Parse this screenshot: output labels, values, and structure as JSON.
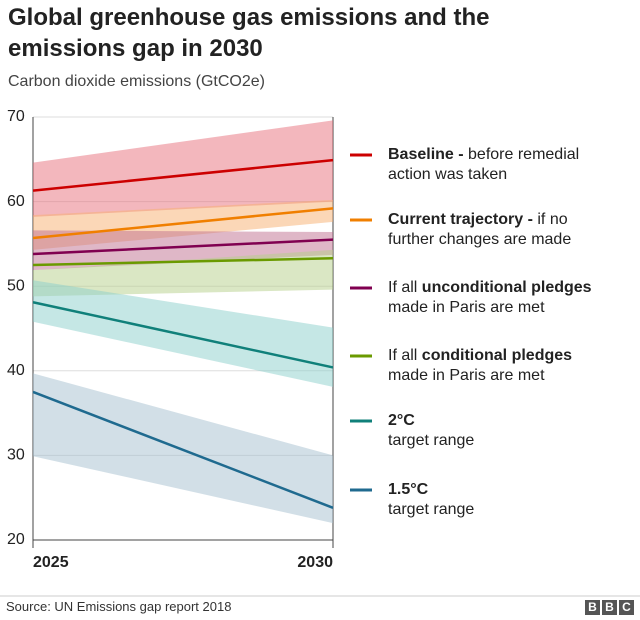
{
  "chart_data": {
    "type": "band-line",
    "title": "Global greenhouse gas emissions and the emissions gap in 2030",
    "subtitle": "Carbon dioxide emissions (GtCO2e)",
    "source": "Source: UN Emissions gap report 2018",
    "logo": [
      "B",
      "B",
      "C"
    ],
    "x": [
      2025,
      2030
    ],
    "xlim": [
      2025,
      2030
    ],
    "xticks": [
      2025,
      2030
    ],
    "ylim": [
      20,
      70
    ],
    "yticks": [
      20,
      30,
      40,
      50,
      60,
      70
    ],
    "grid": true,
    "series": [
      {
        "name": [
          [
            {
              "text": "Baseline - ",
              "bold": true
            },
            {
              "text": "before remedial",
              "bold": false
            }
          ],
          [
            {
              "text": "action was taken",
              "bold": false
            }
          ]
        ],
        "color": "#cc0000",
        "band_color": "#e8707c",
        "values": [
          61.3,
          64.9
        ],
        "upper": [
          64.6,
          69.6
        ],
        "lower": [
          58.2,
          60.0
        ]
      },
      {
        "name": [
          [
            {
              "text": "Current trajectory - ",
              "bold": true
            },
            {
              "text": "if no",
              "bold": false
            }
          ],
          [
            {
              "text": "further changes are made",
              "bold": false
            }
          ]
        ],
        "color": "#f07f00",
        "band_color": "#f8b070",
        "values": [
          55.7,
          59.2
        ],
        "upper": [
          58.4,
          60.2
        ],
        "lower": [
          54.3,
          57.6
        ]
      },
      {
        "name": [
          [
            {
              "text": "If all ",
              "bold": false
            },
            {
              "text": "unconditional pledges",
              "bold": true
            }
          ],
          [
            {
              "text": "made in Paris are met",
              "bold": false
            }
          ]
        ],
        "color": "#800050",
        "band_color": "#c07090",
        "values": [
          53.8,
          55.5
        ],
        "upper": [
          56.6,
          56.4
        ],
        "lower": [
          51.9,
          53.7
        ]
      },
      {
        "name": [
          [
            {
              "text": "If all ",
              "bold": false
            },
            {
              "text": "conditional pledges",
              "bold": true
            }
          ],
          [
            {
              "text": "made in Paris are met",
              "bold": false
            }
          ]
        ],
        "color": "#6a9a00",
        "band_color": "#b5d08a",
        "values": [
          52.5,
          53.3
        ],
        "upper": [
          51.9,
          54.3
        ],
        "lower": [
          48.8,
          49.6
        ]
      },
      {
        "name": [
          [
            {
              "text": "2°C",
              "bold": true
            }
          ],
          [
            {
              "text": "target range",
              "bold": false
            }
          ]
        ],
        "color": "#10807a",
        "band_color": "#8ccfcc",
        "values": [
          48.1,
          40.4
        ],
        "upper": [
          50.7,
          45.1
        ],
        "lower": [
          45.8,
          38.1
        ]
      },
      {
        "name": [
          [
            {
              "text": "1.5°C",
              "bold": true
            }
          ],
          [
            {
              "text": "target range",
              "bold": false
            }
          ]
        ],
        "color": "#1f6a8f",
        "band_color": "#a5bfd0",
        "values": [
          37.5,
          23.8
        ],
        "upper": [
          39.7,
          30.0
        ],
        "lower": [
          29.9,
          22.0
        ]
      }
    ]
  }
}
